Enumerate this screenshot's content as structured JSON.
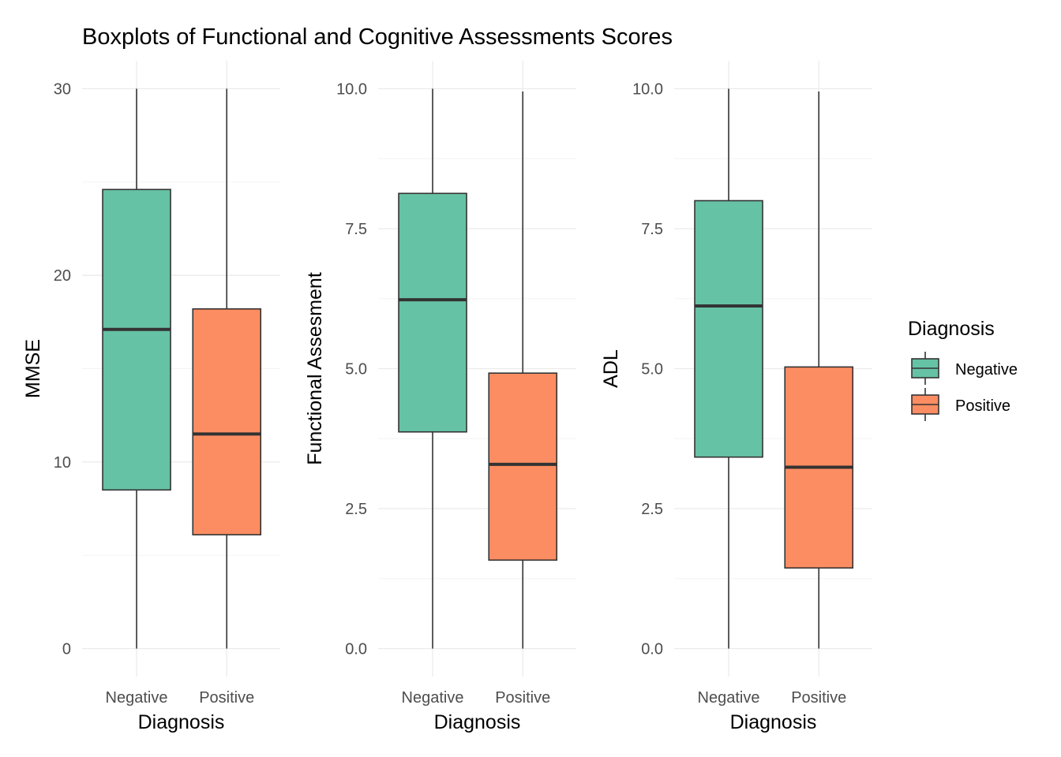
{
  "title": "Boxplots of Functional and Cognitive Assessments Scores",
  "colors": {
    "Negative": "#66c2a5",
    "Positive": "#fc8d62"
  },
  "legend": {
    "title": "Diagnosis",
    "placement": "right",
    "items": [
      "Negative",
      "Positive"
    ]
  },
  "chart_data": [
    {
      "type": "box",
      "xlabel": "Diagnosis",
      "ylabel": "MMSE",
      "categories": [
        "Negative",
        "Positive"
      ],
      "ylim": [
        -1.5,
        31.5
      ],
      "yticks": [
        0,
        10,
        20,
        30
      ],
      "ytick_labels": [
        "0",
        "10",
        "20",
        "30"
      ],
      "boxes": [
        {
          "name": "Negative",
          "min": 0,
          "q1": 8.5,
          "median": 17.1,
          "q3": 24.6,
          "max": 30
        },
        {
          "name": "Positive",
          "min": 0,
          "q1": 6.1,
          "median": 11.5,
          "q3": 18.2,
          "max": 30
        }
      ]
    },
    {
      "type": "box",
      "xlabel": "Diagnosis",
      "ylabel": "Functional Assesment",
      "categories": [
        "Negative",
        "Positive"
      ],
      "ylim": [
        -0.5,
        10.5
      ],
      "yticks": [
        0,
        2.5,
        5,
        7.5,
        10
      ],
      "ytick_labels": [
        "0.0",
        "2.5",
        "5.0",
        "7.5",
        "10.0"
      ],
      "boxes": [
        {
          "name": "Negative",
          "min": 0,
          "q1": 3.87,
          "median": 6.23,
          "q3": 8.13,
          "max": 10
        },
        {
          "name": "Positive",
          "min": 0,
          "q1": 1.58,
          "median": 3.29,
          "q3": 4.92,
          "max": 9.95
        }
      ]
    },
    {
      "type": "box",
      "xlabel": "Diagnosis",
      "ylabel": "ADL",
      "categories": [
        "Negative",
        "Positive"
      ],
      "ylim": [
        -0.5,
        10.5
      ],
      "yticks": [
        0,
        2.5,
        5,
        7.5,
        10
      ],
      "ytick_labels": [
        "0.0",
        "2.5",
        "5.0",
        "7.5",
        "10.0"
      ],
      "boxes": [
        {
          "name": "Negative",
          "min": 0,
          "q1": 3.42,
          "median": 6.12,
          "q3": 8.0,
          "max": 10
        },
        {
          "name": "Positive",
          "min": 0,
          "q1": 1.44,
          "median": 3.24,
          "q3": 5.03,
          "max": 9.95
        }
      ]
    }
  ]
}
